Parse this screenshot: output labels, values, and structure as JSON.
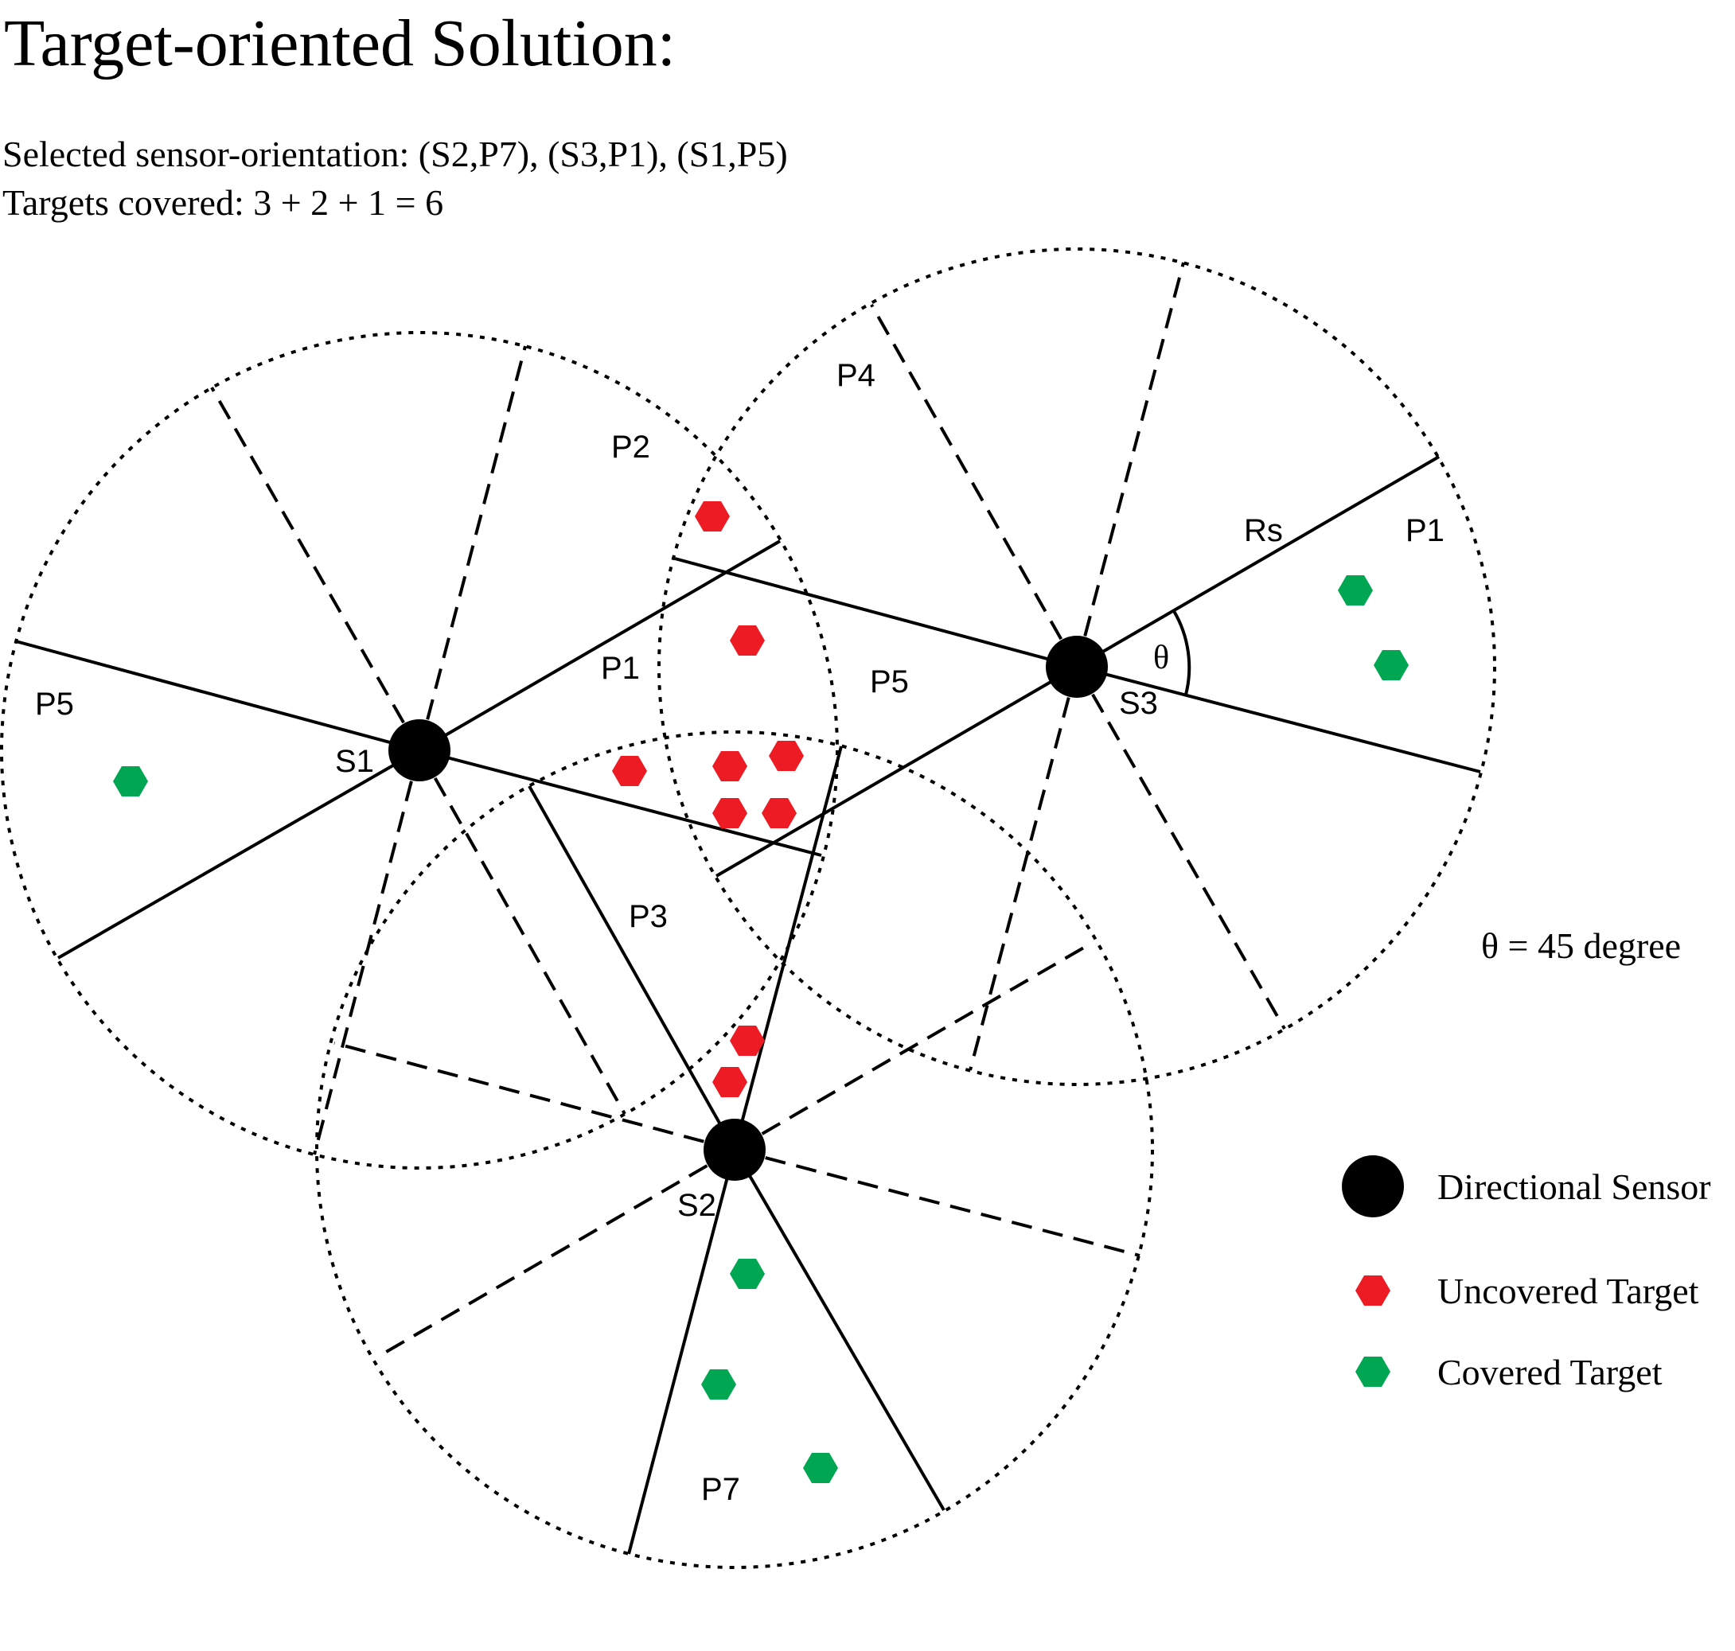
{
  "title": "Target-oriented Solution:",
  "subtitle_1": "Selected sensor-orientation: (S2,P7), (S3,P1), (S1,P5)",
  "subtitle_2": "Targets covered: 3 + 2 + 1 = 6",
  "theta_note": "θ = 45 degree",
  "theta_symbol": "θ",
  "range_label": "Rs",
  "sensors": {
    "s1": {
      "name": "S1",
      "labels": {
        "p5": "P5",
        "p1": "P1",
        "p2": "P2",
        "p3": "P3"
      }
    },
    "s2": {
      "name": "S2",
      "labels": {
        "p7": "P7"
      }
    },
    "s3": {
      "name": "S3",
      "labels": {
        "p4": "P4",
        "p5": "P5",
        "p1": "P1"
      }
    }
  },
  "legend": {
    "sensor": "Directional Sensor",
    "uncovered": "Uncovered Target",
    "covered": "Covered Target"
  },
  "colors": {
    "uncovered": "#ed1c24",
    "covered": "#00a651",
    "sensor": "#000000"
  },
  "icons": {
    "sensor": "filled-circle",
    "target": "hexagon"
  },
  "targets_covered_count": 6
}
